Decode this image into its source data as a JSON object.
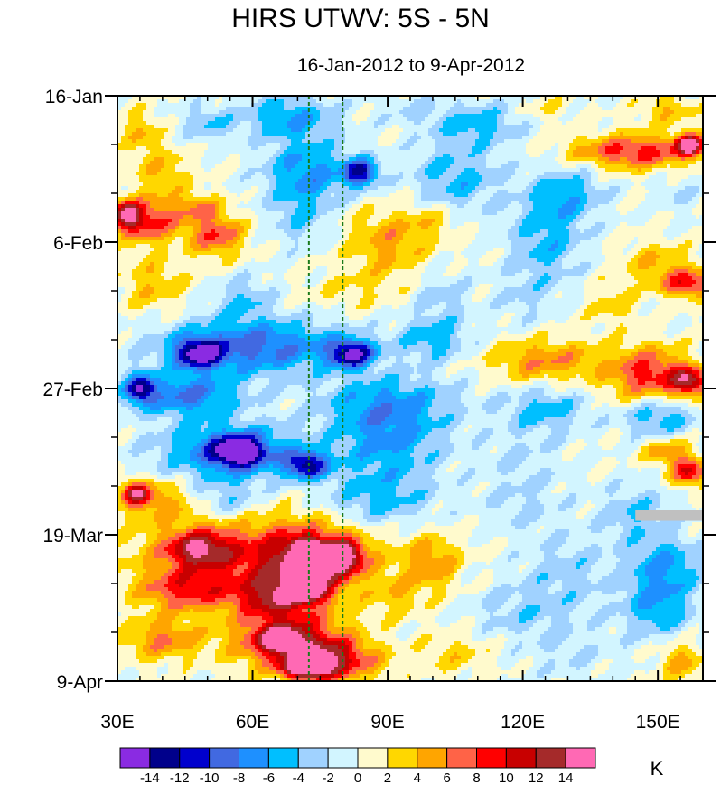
{
  "chart_data": {
    "type": "heatmap",
    "title": "HIRS UTWV: 5S - 5N",
    "subtitle": "16-Jan-2012 to 9-Apr-2012",
    "x_axis": {
      "label": "",
      "range": [
        30,
        160
      ],
      "units": "degrees longitude",
      "ticks": [
        {
          "value": 30,
          "label": "30E"
        },
        {
          "value": 60,
          "label": "60E"
        },
        {
          "value": 90,
          "label": "90E"
        },
        {
          "value": 120,
          "label": "120E"
        },
        {
          "value": 150,
          "label": "150E"
        }
      ]
    },
    "y_axis": {
      "label": "",
      "range_days": [
        0,
        84
      ],
      "direction": "time increases downward",
      "ticks": [
        {
          "value": 0,
          "label": "16-Jan"
        },
        {
          "value": 21,
          "label": "6-Feb"
        },
        {
          "value": 42,
          "label": "27-Feb"
        },
        {
          "value": 63,
          "label": "19-Mar"
        },
        {
          "value": 84,
          "label": "9-Apr"
        }
      ]
    },
    "reference_lines_longitude": [
      72.5,
      80
    ],
    "colorbar": {
      "units": "K",
      "levels": [
        -14,
        -12,
        -10,
        -8,
        -6,
        -4,
        -2,
        0,
        2,
        4,
        6,
        8,
        10,
        12,
        14
      ],
      "labels": [
        "-14",
        "-12",
        "-10",
        "-8",
        "-6",
        "-4",
        "-2",
        "0",
        "2",
        "4",
        "6",
        "8",
        "10",
        "12",
        "14"
      ],
      "colors": [
        "#8a2be2",
        "#00008b",
        "#0000cd",
        "#4169e1",
        "#1e90ff",
        "#00bfff",
        "#a0d2ff",
        "#d2f5ff",
        "#fffacd",
        "#ffd700",
        "#ffa500",
        "#ff6347",
        "#ff0000",
        "#c80000",
        "#a52a2a",
        "#ff69b4"
      ]
    },
    "missing_data_color": "#c0c0c0",
    "blobs": [
      {
        "lon": 35,
        "day": 5,
        "rx": 4,
        "ry": 3,
        "v": 4
      },
      {
        "lon": 50,
        "day": 4,
        "rx": 6,
        "ry": 2.5,
        "v": -4
      },
      {
        "lon": 68,
        "day": 3,
        "rx": 10,
        "ry": 3,
        "v": -6
      },
      {
        "lon": 95,
        "day": 2,
        "rx": 8,
        "ry": 2.5,
        "v": -2
      },
      {
        "lon": 110,
        "day": 4,
        "rx": 10,
        "ry": 3,
        "v": -5
      },
      {
        "lon": 125,
        "day": 2,
        "rx": 6,
        "ry": 2,
        "v": 2
      },
      {
        "lon": 152,
        "day": 2,
        "rx": 6,
        "ry": 2,
        "v": 4
      },
      {
        "lon": 145,
        "day": 8,
        "rx": 14,
        "ry": 2.5,
        "v": 9
      },
      {
        "lon": 157,
        "day": 7,
        "rx": 3,
        "ry": 1.5,
        "v": 15
      },
      {
        "lon": 40,
        "day": 11,
        "rx": 6,
        "ry": 4,
        "v": 4
      },
      {
        "lon": 72,
        "day": 11,
        "rx": 9,
        "ry": 5,
        "v": -7
      },
      {
        "lon": 84,
        "day": 11,
        "rx": 4,
        "ry": 2,
        "v": -12
      },
      {
        "lon": 105,
        "day": 12,
        "rx": 10,
        "ry": 5,
        "v": -5
      },
      {
        "lon": 130,
        "day": 14,
        "rx": 8,
        "ry": 4,
        "v": -5
      },
      {
        "lon": 155,
        "day": 14,
        "rx": 5,
        "ry": 3,
        "v": -2
      },
      {
        "lon": 37,
        "day": 18,
        "rx": 7,
        "ry": 3,
        "v": 9
      },
      {
        "lon": 32,
        "day": 17,
        "rx": 3,
        "ry": 2,
        "v": 12
      },
      {
        "lon": 52,
        "day": 20,
        "rx": 6,
        "ry": 3,
        "v": 8
      },
      {
        "lon": 48,
        "day": 16,
        "rx": 5,
        "ry": 2,
        "v": 5
      },
      {
        "lon": 70,
        "day": 18,
        "rx": 6,
        "ry": 4,
        "v": -3
      },
      {
        "lon": 90,
        "day": 21,
        "rx": 9,
        "ry": 5,
        "v": 5
      },
      {
        "lon": 100,
        "day": 18,
        "rx": 6,
        "ry": 3,
        "v": 3
      },
      {
        "lon": 125,
        "day": 21,
        "rx": 8,
        "ry": 6,
        "v": -5
      },
      {
        "lon": 150,
        "day": 24,
        "rx": 8,
        "ry": 3,
        "v": 4
      },
      {
        "lon": 157,
        "day": 27,
        "rx": 6,
        "ry": 2,
        "v": 9
      },
      {
        "lon": 38,
        "day": 27,
        "rx": 7,
        "ry": 4,
        "v": 4
      },
      {
        "lon": 58,
        "day": 29,
        "rx": 6,
        "ry": 3,
        "v": -4
      },
      {
        "lon": 82,
        "day": 28,
        "rx": 10,
        "ry": 3,
        "v": 2
      },
      {
        "lon": 102,
        "day": 29,
        "rx": 6,
        "ry": 4,
        "v": -3
      },
      {
        "lon": 120,
        "day": 29,
        "rx": 7,
        "ry": 4,
        "v": -2
      },
      {
        "lon": 140,
        "day": 30,
        "rx": 6,
        "ry": 3,
        "v": 3
      },
      {
        "lon": 60,
        "day": 36,
        "rx": 20,
        "ry": 4,
        "v": -9
      },
      {
        "lon": 48,
        "day": 37,
        "rx": 5,
        "ry": 2,
        "v": -12
      },
      {
        "lon": 82,
        "day": 37,
        "rx": 5,
        "ry": 2,
        "v": -13
      },
      {
        "lon": 100,
        "day": 35,
        "rx": 8,
        "ry": 3,
        "v": -5
      },
      {
        "lon": 125,
        "day": 38,
        "rx": 12,
        "ry": 3,
        "v": 6
      },
      {
        "lon": 148,
        "day": 40,
        "rx": 9,
        "ry": 4,
        "v": 9
      },
      {
        "lon": 157,
        "day": 41,
        "rx": 4,
        "ry": 2,
        "v": 12
      },
      {
        "lon": 45,
        "day": 43,
        "rx": 12,
        "ry": 3,
        "v": -8
      },
      {
        "lon": 35,
        "day": 42,
        "rx": 3,
        "ry": 2,
        "v": -12
      },
      {
        "lon": 90,
        "day": 44,
        "rx": 15,
        "ry": 4,
        "v": -6
      },
      {
        "lon": 125,
        "day": 45,
        "rx": 9,
        "ry": 3,
        "v": -5
      },
      {
        "lon": 150,
        "day": 46,
        "rx": 8,
        "ry": 3,
        "v": -6
      },
      {
        "lon": 55,
        "day": 51,
        "rx": 15,
        "ry": 4,
        "v": -9
      },
      {
        "lon": 57,
        "day": 51,
        "rx": 5,
        "ry": 2,
        "v": -13
      },
      {
        "lon": 72,
        "day": 53,
        "rx": 5,
        "ry": 2,
        "v": -11
      },
      {
        "lon": 90,
        "day": 50,
        "rx": 12,
        "ry": 5,
        "v": -6
      },
      {
        "lon": 120,
        "day": 52,
        "rx": 10,
        "ry": 5,
        "v": -2
      },
      {
        "lon": 152,
        "day": 51,
        "rx": 5,
        "ry": 2,
        "v": 6
      },
      {
        "lon": 157,
        "day": 54,
        "rx": 4,
        "ry": 2,
        "v": 10
      },
      {
        "lon": 38,
        "day": 58,
        "rx": 8,
        "ry": 3,
        "v": 5
      },
      {
        "lon": 34,
        "day": 57,
        "rx": 3,
        "ry": 1.5,
        "v": 11
      },
      {
        "lon": 55,
        "day": 58,
        "rx": 7,
        "ry": 3,
        "v": -4
      },
      {
        "lon": 88,
        "day": 58,
        "rx": 12,
        "ry": 4,
        "v": -5
      },
      {
        "lon": 120,
        "day": 59,
        "rx": 10,
        "ry": 4,
        "v": -2
      },
      {
        "lon": 145,
        "day": 60,
        "rx": 8,
        "ry": 4,
        "v": -4
      },
      {
        "lon": 62,
        "day": 66,
        "rx": 25,
        "ry": 6,
        "v": 8
      },
      {
        "lon": 48,
        "day": 65,
        "rx": 7,
        "ry": 2.5,
        "v": 10
      },
      {
        "lon": 73,
        "day": 67,
        "rx": 9,
        "ry": 4,
        "v": 11
      },
      {
        "lon": 80,
        "day": 66,
        "rx": 4,
        "ry": 2,
        "v": 12
      },
      {
        "lon": 72,
        "day": 65,
        "rx": 2.5,
        "ry": 1.2,
        "v": 15
      },
      {
        "lon": 100,
        "day": 67,
        "rx": 6,
        "ry": 4,
        "v": 5
      },
      {
        "lon": 130,
        "day": 68,
        "rx": 10,
        "ry": 5,
        "v": -3
      },
      {
        "lon": 152,
        "day": 67,
        "rx": 8,
        "ry": 4,
        "v": -5
      },
      {
        "lon": 45,
        "day": 71,
        "rx": 10,
        "ry": 3,
        "v": 7
      },
      {
        "lon": 65,
        "day": 72,
        "rx": 9,
        "ry": 3,
        "v": 9
      },
      {
        "lon": 72,
        "day": 71,
        "rx": 4,
        "ry": 1.5,
        "v": 13
      },
      {
        "lon": 92,
        "day": 72,
        "rx": 6,
        "ry": 3,
        "v": 3
      },
      {
        "lon": 120,
        "day": 74,
        "rx": 12,
        "ry": 4,
        "v": -3
      },
      {
        "lon": 150,
        "day": 73,
        "rx": 8,
        "ry": 5,
        "v": -6
      },
      {
        "lon": 40,
        "day": 78,
        "rx": 9,
        "ry": 3,
        "v": 6
      },
      {
        "lon": 68,
        "day": 78,
        "rx": 12,
        "ry": 4,
        "v": 11
      },
      {
        "lon": 66,
        "day": 78,
        "rx": 4,
        "ry": 1.5,
        "v": 13
      },
      {
        "lon": 72,
        "day": 82,
        "rx": 5,
        "ry": 1.5,
        "v": 15
      },
      {
        "lon": 78,
        "day": 81,
        "rx": 10,
        "ry": 3,
        "v": 10
      },
      {
        "lon": 105,
        "day": 80,
        "rx": 8,
        "ry": 3,
        "v": 3
      },
      {
        "lon": 130,
        "day": 80,
        "rx": 10,
        "ry": 4,
        "v": -2
      },
      {
        "lon": 155,
        "day": 81,
        "rx": 5,
        "ry": 3,
        "v": 5
      }
    ]
  },
  "units_label": "K"
}
